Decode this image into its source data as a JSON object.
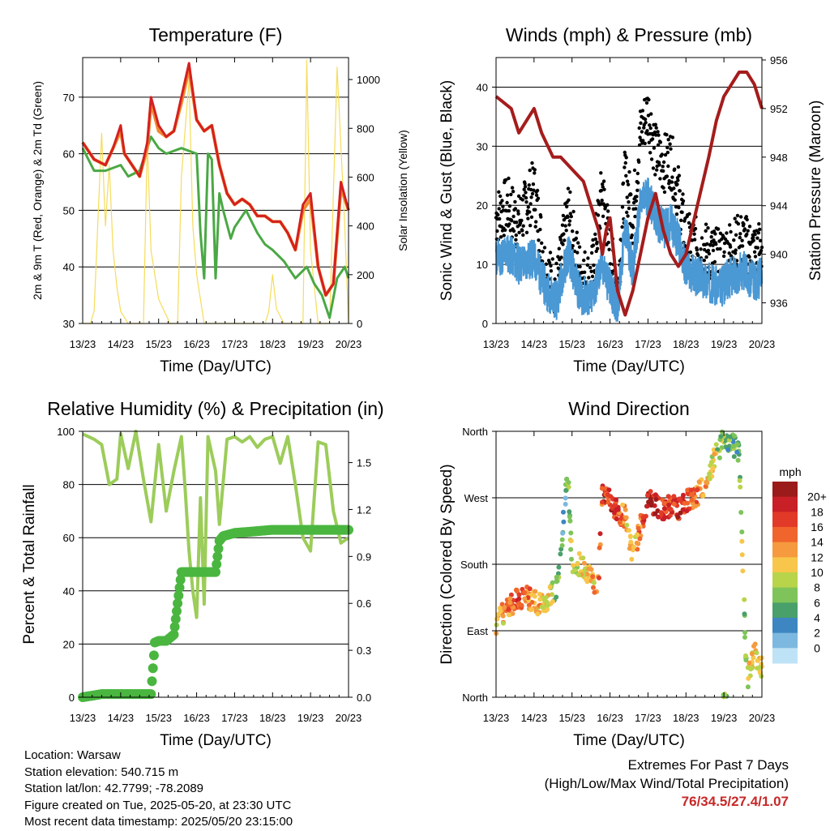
{
  "info": {
    "location": "Location: Warsaw",
    "elevation": "Station elevation: 540.715 m",
    "latlon": "Station lat/lon: 42.7799; -78.2089",
    "created": "Figure created on Tue, 2025-05-20, at 23:30 UTC",
    "recent": "Most recent data timestamp: 2025/05/20 23:15:00"
  },
  "extremes": {
    "line1": "Extremes For Past 7 Days",
    "line2": "(High/Low/Max Wind/Total Precipitation)",
    "values": "76/34.5/27.4/1.07"
  },
  "colors": {
    "temp_2m": "#d42020",
    "temp_9m": "#f08a30",
    "dewpoint": "#4aa844",
    "solar": "#f5dc5a",
    "gust": "#000000",
    "wind": "#4a98d4",
    "pressure": "#a51c1c",
    "rh": "#9ccc5a",
    "precip": "#4ab640"
  },
  "chart_data": [
    {
      "id": "temperature",
      "type": "line",
      "title": "Temperature (F)",
      "xlabel": "Time (Day/UTC)",
      "ylabel": "2m & 9m T (Red, Orange) & 2m Td (Green)",
      "y2label": "Solar Insolation (Yellow)",
      "xticks": [
        "13/23",
        "14/23",
        "15/23",
        "16/23",
        "17/23",
        "18/23",
        "19/23",
        "20/23"
      ],
      "xlim": [
        0,
        7
      ],
      "ylim": [
        30,
        77
      ],
      "yticks": [
        30,
        40,
        50,
        60,
        70
      ],
      "y2lim": [
        0,
        1090
      ],
      "y2ticks": [
        0,
        200,
        400,
        600,
        800,
        1000
      ],
      "series": [
        {
          "key": "temp_2m",
          "x": [
            0,
            0.3,
            0.6,
            0.8,
            1.0,
            1.1,
            1.3,
            1.5,
            1.7,
            1.8,
            2.0,
            2.2,
            2.4,
            2.6,
            2.8,
            3.0,
            3.2,
            3.4,
            3.6,
            3.8,
            4.0,
            4.2,
            4.4,
            4.6,
            4.8,
            5.0,
            5.2,
            5.4,
            5.6,
            5.8,
            6.0,
            6.2,
            6.4,
            6.6,
            6.8,
            7.0
          ],
          "y": [
            62,
            59,
            58,
            61,
            65,
            60,
            58,
            56,
            62,
            70,
            65,
            63,
            64,
            70,
            76,
            66,
            64,
            65,
            58,
            53,
            51,
            52,
            51,
            49,
            49,
            48,
            48,
            46,
            43,
            51,
            53,
            40,
            35,
            37,
            55,
            50
          ]
        },
        {
          "key": "temp_9m",
          "x": [
            0,
            0.3,
            0.6,
            0.8,
            1.0,
            1.1,
            1.3,
            1.5,
            1.7,
            1.8,
            2.0,
            2.2,
            2.4,
            2.6,
            2.8,
            3.0,
            3.2,
            3.4,
            3.6,
            3.8,
            4.0,
            4.2,
            4.4,
            4.6,
            4.8,
            5.0,
            5.2,
            5.4,
            5.6,
            5.8,
            6.0,
            6.2,
            6.4,
            6.6,
            6.8,
            7.0
          ],
          "y": [
            62,
            59,
            58,
            61,
            64,
            60,
            58,
            56,
            61,
            69,
            64,
            63,
            64,
            69,
            75,
            66,
            64,
            65,
            58,
            53,
            51,
            52,
            51,
            49,
            49,
            48,
            48,
            46,
            43,
            50,
            52,
            40,
            35,
            37,
            54,
            50
          ]
        },
        {
          "key": "dewpoint",
          "x": [
            0,
            0.3,
            0.6,
            1.0,
            1.2,
            1.5,
            1.8,
            2.0,
            2.2,
            2.6,
            3.0,
            3.1,
            3.2,
            3.3,
            3.4,
            3.5,
            3.6,
            3.7,
            3.9,
            4.0,
            4.3,
            4.6,
            4.8,
            5.0,
            5.3,
            5.6,
            5.9,
            6.1,
            6.3,
            6.5,
            6.7,
            6.9,
            7.0
          ],
          "y": [
            61,
            57,
            57,
            58,
            56,
            57,
            63,
            61,
            60,
            61,
            60,
            46,
            38,
            60,
            59,
            38,
            53,
            50,
            45,
            47,
            50,
            46,
            44,
            43,
            41,
            38,
            40,
            37,
            35,
            31,
            38,
            40,
            38
          ]
        },
        {
          "key": "solar",
          "x": [
            0,
            0.2,
            0.3,
            0.5,
            0.6,
            0.7,
            0.8,
            0.9,
            1.0,
            1.2,
            1.4,
            1.6,
            1.7,
            1.8,
            2.0,
            2.3,
            2.5,
            2.6,
            2.8,
            2.9,
            3.0,
            3.2,
            3.6,
            3.8,
            4.0,
            4.3,
            4.6,
            4.8,
            4.9,
            5.0,
            5.1,
            5.3,
            5.6,
            5.8,
            5.9,
            6.0,
            6.2,
            6.5,
            6.7,
            6.9,
            7.0
          ],
          "y": [
            0,
            0,
            50,
            780,
            400,
            650,
            300,
            150,
            50,
            0,
            0,
            0,
            750,
            300,
            100,
            0,
            0,
            600,
            1000,
            400,
            200,
            0,
            0,
            0,
            0,
            0,
            0,
            0,
            50,
            200,
            60,
            0,
            0,
            0,
            1080,
            300,
            0,
            0,
            1050,
            400,
            0
          ]
        }
      ]
    },
    {
      "id": "winds",
      "type": "scatter",
      "title": "Winds (mph) & Pressure (mb)",
      "xlabel": "Time (Day/UTC)",
      "ylabel": "Sonic Wind & Gust (Blue, Black)",
      "y2label": "Station Pressure (Maroon)",
      "xticks": [
        "13/23",
        "14/23",
        "15/23",
        "16/23",
        "17/23",
        "18/23",
        "19/23",
        "20/23"
      ],
      "xlim": [
        0,
        7
      ],
      "ylim": [
        0,
        45
      ],
      "yticks": [
        0,
        10,
        20,
        30,
        40
      ],
      "y2lim": [
        934.3,
        956.2
      ],
      "y2ticks": [
        936,
        940,
        944,
        948,
        952,
        956
      ],
      "series": [
        {
          "key": "pressure",
          "x": [
            0,
            0.4,
            0.6,
            0.8,
            1.0,
            1.2,
            1.5,
            1.7,
            2.0,
            2.3,
            2.5,
            2.7,
            2.8,
            2.9,
            3.0,
            3.2,
            3.4,
            3.6,
            3.8,
            4.0,
            4.2,
            4.4,
            4.6,
            4.8,
            5.0,
            5.3,
            5.6,
            5.8,
            6.0,
            6.2,
            6.4,
            6.6,
            6.8,
            7.0
          ],
          "y": [
            953,
            952,
            950,
            951,
            952,
            950,
            948,
            948,
            947,
            946,
            944,
            942,
            940,
            942,
            943,
            937,
            935,
            937,
            940,
            943,
            945,
            942,
            940,
            939,
            940,
            944,
            948,
            951,
            953,
            954,
            955,
            955,
            954,
            952
          ]
        },
        {
          "key": "wind",
          "x": [
            0,
            0.3,
            0.6,
            1.0,
            1.3,
            1.6,
            1.9,
            2.2,
            2.5,
            2.8,
            3.0,
            3.2,
            3.4,
            3.6,
            3.8,
            4.0,
            4.2,
            4.4,
            4.6,
            4.8,
            5.0,
            5.3,
            5.6,
            5.9,
            6.2,
            6.5,
            6.8,
            7.0
          ],
          "y": [
            11,
            12,
            10,
            11,
            6,
            4,
            12,
            5,
            4,
            10,
            6,
            3,
            16,
            9,
            20,
            22,
            18,
            16,
            17,
            14,
            9,
            8,
            7,
            6,
            8,
            9,
            7,
            8
          ]
        },
        {
          "key": "gust",
          "x": [
            0,
            0.3,
            0.6,
            1.0,
            1.3,
            1.6,
            1.9,
            2.2,
            2.5,
            2.8,
            3.0,
            3.2,
            3.4,
            3.6,
            3.8,
            4.0,
            4.2,
            4.4,
            4.6,
            4.8,
            5.0,
            5.3,
            5.6,
            5.9,
            6.2,
            6.5,
            6.8,
            7.0
          ],
          "y": [
            18,
            20,
            17,
            23,
            9,
            6,
            19,
            9,
            7,
            23,
            12,
            5,
            25,
            18,
            32,
            36,
            29,
            27,
            28,
            22,
            14,
            13,
            12,
            11,
            13,
            14,
            12,
            13
          ]
        }
      ]
    },
    {
      "id": "humidity",
      "type": "line",
      "title": "Relative Humidity (%) & Precipitation (in)",
      "xlabel": "Time (Day/UTC)",
      "ylabel": "Percent & Total Rainfall",
      "xticks": [
        "13/23",
        "14/23",
        "15/23",
        "16/23",
        "17/23",
        "18/23",
        "19/23",
        "20/23"
      ],
      "xlim": [
        0,
        7
      ],
      "ylim": [
        0,
        100
      ],
      "yticks": [
        0,
        20,
        40,
        60,
        80,
        100
      ],
      "y2lim": [
        0,
        1.7
      ],
      "y2ticks": [
        "0.0",
        "0.3",
        "0.6",
        "0.9",
        "1.2",
        "1.5"
      ],
      "series": [
        {
          "key": "rh",
          "x": [
            0,
            0.3,
            0.5,
            0.7,
            0.9,
            1.0,
            1.2,
            1.4,
            1.6,
            1.8,
            2.0,
            2.2,
            2.4,
            2.6,
            2.7,
            2.8,
            2.9,
            3.0,
            3.1,
            3.2,
            3.3,
            3.5,
            3.6,
            3.8,
            4.0,
            4.2,
            4.4,
            4.6,
            4.8,
            5.0,
            5.2,
            5.4,
            5.6,
            5.8,
            6.0,
            6.2,
            6.4,
            6.6,
            6.8,
            7.0
          ],
          "y": [
            99,
            97,
            95,
            80,
            82,
            99,
            86,
            100,
            82,
            66,
            95,
            70,
            85,
            98,
            78,
            55,
            40,
            30,
            75,
            35,
            98,
            85,
            65,
            97,
            98,
            96,
            98,
            94,
            97,
            98,
            88,
            98,
            80,
            60,
            55,
            96,
            95,
            70,
            58,
            60
          ]
        },
        {
          "key": "precip",
          "x": [
            0,
            0.5,
            1.0,
            1.5,
            1.7,
            1.8,
            1.9,
            2.0,
            2.1,
            2.2,
            2.3,
            2.4,
            2.5,
            2.6,
            2.7,
            3.0,
            3.3,
            3.5,
            3.6,
            3.7,
            4.0,
            4.5,
            5.0,
            5.5,
            6.0,
            6.5,
            7.0
          ],
          "y": [
            0,
            0.02,
            0.02,
            0.02,
            0.02,
            0.02,
            0.35,
            0.36,
            0.36,
            0.36,
            0.38,
            0.4,
            0.6,
            0.8,
            0.8,
            0.8,
            0.8,
            0.8,
            1.0,
            1.03,
            1.05,
            1.06,
            1.07,
            1.07,
            1.07,
            1.07,
            1.07
          ]
        }
      ]
    },
    {
      "id": "direction",
      "type": "scatter",
      "title": "Wind Direction",
      "xlabel": "Time (Day/UTC)",
      "ylabel": "Direction (Colored By Speed)",
      "xticks": [
        "13/23",
        "14/23",
        "15/23",
        "16/23",
        "17/23",
        "18/23",
        "19/23",
        "20/23"
      ],
      "xlim": [
        0,
        7
      ],
      "ylim": [
        0,
        360
      ],
      "ytick_values": [
        0,
        90,
        180,
        270,
        360
      ],
      "yticks": [
        "North",
        "East",
        "South",
        "West",
        "North"
      ],
      "colorbar": {
        "title": "mph",
        "labels": [
          "20+",
          "18",
          "16",
          "14",
          "12",
          "10",
          "8",
          "6",
          "4",
          "2",
          "0"
        ],
        "colors": [
          "#9b1b1b",
          "#c91f26",
          "#e23a28",
          "#f0652c",
          "#f59a3e",
          "#f7c64a",
          "#b8d44a",
          "#7ec45a",
          "#4aa06a",
          "#3d86c2",
          "#7db8e0",
          "#bfe3f6"
        ]
      },
      "series": [
        {
          "x": [
            0,
            0.2,
            0.4,
            0.6,
            0.8,
            1.0,
            1.2,
            1.4,
            1.6,
            1.7,
            1.8,
            1.9,
            2.0,
            2.2,
            2.4,
            2.6,
            2.7,
            2.8,
            3.0,
            3.2,
            3.4,
            3.6,
            3.8,
            4.0,
            4.2,
            4.4,
            4.6,
            4.8,
            5.0,
            5.2,
            5.4,
            5.6,
            5.8,
            6.0,
            6.2,
            6.4,
            6.6,
            6.8,
            7.0
          ],
          "y": [
            100,
            115,
            125,
            135,
            135,
            130,
            125,
            135,
            150,
            190,
            260,
            300,
            170,
            180,
            170,
            150,
            160,
            280,
            270,
            250,
            245,
            190,
            230,
            270,
            260,
            255,
            260,
            255,
            265,
            270,
            280,
            300,
            330,
            350,
            345,
            330,
            20,
            60,
            40
          ],
          "speed": [
            10,
            12,
            14,
            15,
            13,
            12,
            10,
            9,
            6,
            4,
            3,
            5,
            8,
            9,
            10,
            12,
            14,
            16,
            18,
            16,
            12,
            8,
            14,
            18,
            18,
            16,
            15,
            17,
            16,
            14,
            12,
            10,
            8,
            6,
            4,
            6,
            8,
            10,
            8
          ]
        }
      ]
    }
  ]
}
